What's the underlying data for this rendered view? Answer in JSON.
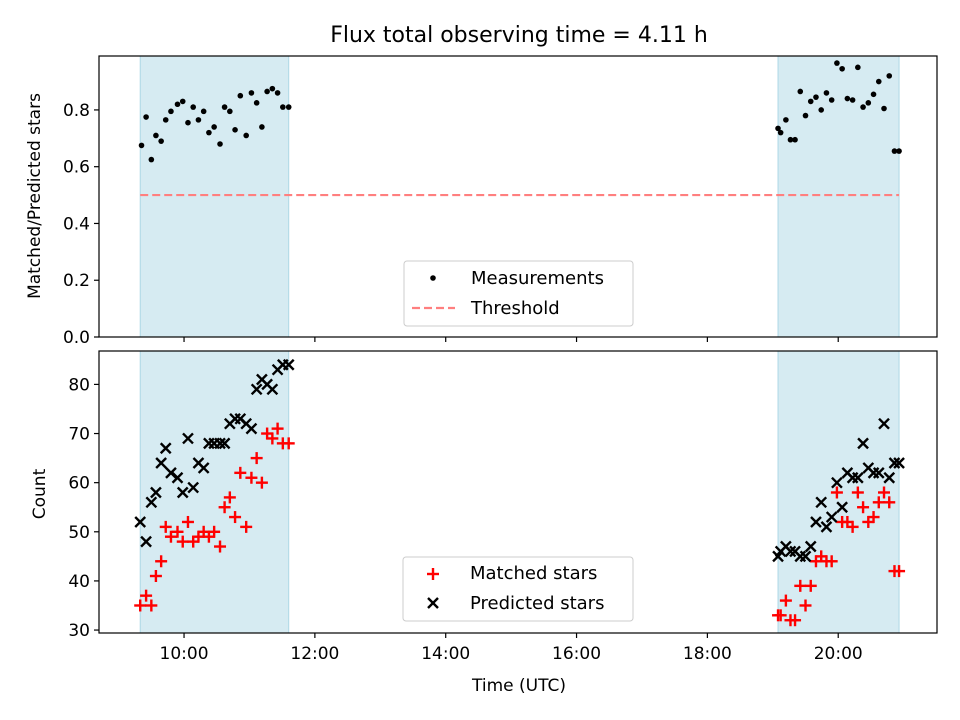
{
  "title": "Flux total observing time = 4.11 h",
  "xlabel": "Time (UTC)",
  "x_ticks": [
    {
      "value": 10,
      "label": "10:00"
    },
    {
      "value": 12,
      "label": "12:00"
    },
    {
      "value": 14,
      "label": "14:00"
    },
    {
      "value": 16,
      "label": "16:00"
    },
    {
      "value": 18,
      "label": "18:00"
    },
    {
      "value": 20,
      "label": "20:00"
    }
  ],
  "xlim": [
    8.7,
    21.51
  ],
  "colors": {
    "shade": "#add8e6",
    "measure": "#000000",
    "threshold": "#ff7f7f",
    "matched": "#ff0000",
    "predicted": "#000000"
  },
  "chart_data": [
    {
      "type": "scatter",
      "ylabel": "Matched/Predicted stars",
      "ylim": [
        0,
        0.99
      ],
      "y_ticks": [
        0.0,
        0.2,
        0.4,
        0.6,
        0.8
      ],
      "y_tick_labels": [
        "0.0",
        "0.2",
        "0.4",
        "0.6",
        "0.8"
      ],
      "shaded_intervals": [
        [
          9.33,
          11.6
        ],
        [
          19.08,
          20.93
        ]
      ],
      "threshold": 0.5,
      "legend": [
        {
          "label": "Measurements",
          "marker": "dot"
        },
        {
          "label": "Threshold",
          "marker": "dashed-line"
        }
      ],
      "legend_position": "lower-center",
      "series": [
        {
          "name": "Measurements",
          "x": [
            9.35,
            9.42,
            9.5,
            9.57,
            9.65,
            9.72,
            9.8,
            9.9,
            9.98,
            10.06,
            10.14,
            10.22,
            10.3,
            10.38,
            10.46,
            10.55,
            10.62,
            10.7,
            10.78,
            10.86,
            10.95,
            11.03,
            11.11,
            11.19,
            11.27,
            11.35,
            11.43,
            11.51,
            11.6,
            19.08,
            19.12,
            19.2,
            19.27,
            19.34,
            19.42,
            19.5,
            19.58,
            19.66,
            19.74,
            19.82,
            19.9,
            19.98,
            20.06,
            20.14,
            20.22,
            20.3,
            20.38,
            20.46,
            20.54,
            20.62,
            20.7,
            20.78,
            20.86,
            20.93
          ],
          "y": [
            0.675,
            0.775,
            0.625,
            0.71,
            0.69,
            0.765,
            0.795,
            0.82,
            0.83,
            0.755,
            0.81,
            0.765,
            0.795,
            0.72,
            0.74,
            0.68,
            0.81,
            0.795,
            0.73,
            0.85,
            0.71,
            0.86,
            0.825,
            0.74,
            0.865,
            0.875,
            0.86,
            0.81,
            0.81,
            0.735,
            0.72,
            0.765,
            0.695,
            0.695,
            0.865,
            0.78,
            0.83,
            0.845,
            0.8,
            0.86,
            0.835,
            0.965,
            0.945,
            0.84,
            0.835,
            0.95,
            0.81,
            0.825,
            0.855,
            0.9,
            0.805,
            0.92,
            0.655,
            0.655
          ]
        },
        {
          "name": "Threshold",
          "x": [
            9.33,
            20.93
          ],
          "y": [
            0.5,
            0.5
          ]
        }
      ]
    },
    {
      "type": "scatter",
      "ylabel": "Count",
      "ylim": [
        29.4,
        86.8
      ],
      "y_ticks": [
        30,
        40,
        50,
        60,
        70,
        80
      ],
      "y_tick_labels": [
        "30",
        "40",
        "50",
        "60",
        "70",
        "80"
      ],
      "shaded_intervals": [
        [
          9.33,
          11.6
        ],
        [
          19.08,
          20.93
        ]
      ],
      "legend": [
        {
          "label": "Matched stars",
          "marker": "plus"
        },
        {
          "label": "Predicted stars",
          "marker": "x"
        }
      ],
      "legend_position": "lower-center",
      "series": [
        {
          "name": "Matched stars",
          "x": [
            9.33,
            9.42,
            9.5,
            9.57,
            9.65,
            9.72,
            9.8,
            9.9,
            9.98,
            10.06,
            10.14,
            10.22,
            10.3,
            10.38,
            10.46,
            10.55,
            10.62,
            10.7,
            10.78,
            10.86,
            10.95,
            11.03,
            11.11,
            11.19,
            11.27,
            11.35,
            11.43,
            11.51,
            11.6,
            19.08,
            19.12,
            19.2,
            19.27,
            19.34,
            19.42,
            19.5,
            19.58,
            19.66,
            19.74,
            19.82,
            19.9,
            19.98,
            20.06,
            20.14,
            20.22,
            20.3,
            20.38,
            20.46,
            20.54,
            20.62,
            20.7,
            20.78,
            20.86,
            20.93
          ],
          "y": [
            35,
            37,
            35,
            41,
            44,
            51,
            49,
            50,
            48,
            52,
            48,
            49,
            50,
            49,
            50,
            47,
            55,
            57,
            53,
            62,
            51,
            61,
            65,
            60,
            70,
            69,
            71,
            68,
            68,
            33,
            33,
            36,
            32,
            32,
            39,
            35,
            39,
            44,
            45,
            44,
            44,
            58,
            52,
            52,
            51,
            58,
            55,
            52,
            53,
            56,
            58,
            56,
            42,
            42
          ]
        },
        {
          "name": "Predicted stars",
          "x": [
            9.33,
            9.42,
            9.5,
            9.57,
            9.65,
            9.72,
            9.8,
            9.9,
            9.98,
            10.06,
            10.14,
            10.22,
            10.3,
            10.38,
            10.46,
            10.55,
            10.62,
            10.7,
            10.78,
            10.86,
            10.95,
            11.03,
            11.11,
            11.19,
            11.27,
            11.35,
            11.43,
            11.51,
            11.6,
            19.08,
            19.12,
            19.2,
            19.27,
            19.34,
            19.42,
            19.5,
            19.58,
            19.66,
            19.74,
            19.82,
            19.9,
            19.98,
            20.06,
            20.14,
            20.22,
            20.3,
            20.38,
            20.46,
            20.54,
            20.62,
            20.7,
            20.78,
            20.86,
            20.93
          ],
          "y": [
            52,
            48,
            56,
            58,
            64,
            67,
            62,
            61,
            58,
            69,
            59,
            64,
            63,
            68,
            68,
            68,
            68,
            72,
            73,
            73,
            72,
            71,
            79,
            81,
            80,
            79,
            83,
            84,
            84,
            45,
            46,
            47,
            46,
            46,
            45,
            45,
            47,
            52,
            56,
            51,
            53,
            60,
            55,
            62,
            61,
            61,
            68,
            63,
            62,
            62,
            72,
            61,
            64,
            64
          ]
        }
      ]
    }
  ]
}
